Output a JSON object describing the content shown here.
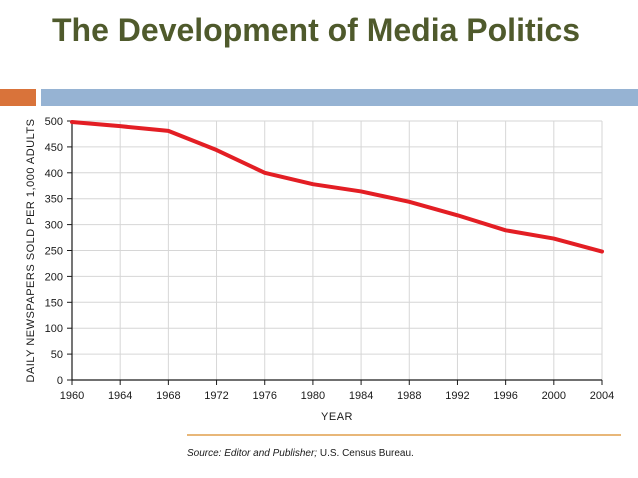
{
  "slide": {
    "title": "The Development of Media Politics",
    "source_prefix": "Source: Editor and Publisher;",
    "source_rest": " U.S. Census Bureau."
  },
  "colors": {
    "title": "#4f5a2c",
    "accent_orange": "#d9733a",
    "accent_blue": "#96b3d3",
    "line": "#e31e24",
    "source_rule": "#e8b779",
    "grid": "#d6d6d6"
  },
  "chart_data": {
    "type": "line",
    "xlabel": "YEAR",
    "ylabel": "DAILY NEWSPAPERS SOLD PER 1,000 ADULTS",
    "x": [
      1960,
      1964,
      1968,
      1972,
      1976,
      1980,
      1984,
      1988,
      1992,
      1996,
      2000,
      2004
    ],
    "series": [
      {
        "values": [
          498,
          490,
          481,
          444,
          400,
          378,
          364,
          344,
          318,
          289,
          273,
          248
        ]
      }
    ],
    "xlim": [
      1960,
      2004
    ],
    "ylim": [
      0,
      500
    ],
    "xticks": [
      1960,
      1964,
      1968,
      1972,
      1976,
      1980,
      1984,
      1988,
      1992,
      1996,
      2000,
      2004
    ],
    "yticks": [
      0,
      50,
      100,
      150,
      200,
      250,
      300,
      350,
      400,
      450,
      500
    ],
    "grid": true,
    "legend": "none"
  }
}
